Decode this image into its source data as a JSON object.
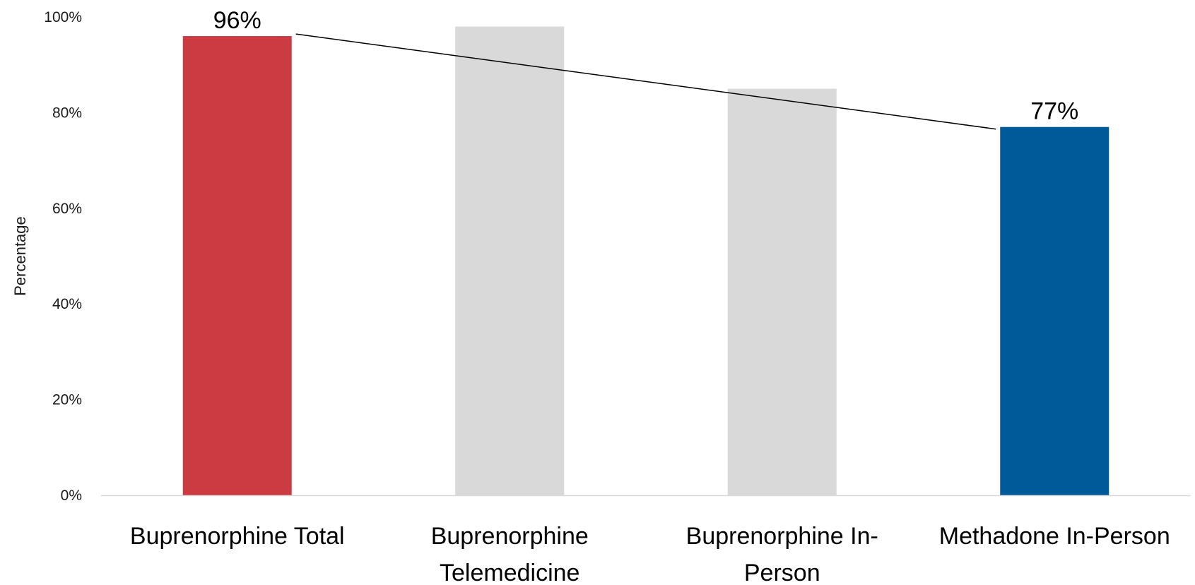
{
  "chart_data": {
    "type": "bar",
    "title": "",
    "xlabel": "",
    "ylabel": "Percentage",
    "ylim": [
      0,
      100
    ],
    "yticks": [
      0,
      20,
      40,
      60,
      80,
      100
    ],
    "ytick_labels": [
      "0%",
      "20%",
      "40%",
      "60%",
      "80%",
      "100%"
    ],
    "grid": false,
    "legend": "none",
    "categories": [
      [
        "Buprenorphine Total"
      ],
      [
        "Buprenorphine",
        "Telemedicine"
      ],
      [
        "Buprenorphine In-",
        "Person"
      ],
      [
        "Methadone In-Person"
      ]
    ],
    "values": [
      96,
      98,
      85,
      77
    ],
    "colors": [
      "#cc3a42",
      "#d9d9d9",
      "#d9d9d9",
      "#005a99"
    ],
    "data_labels": [
      "96%",
      "",
      "",
      "77%"
    ],
    "annotations": [
      {
        "type": "connector-line",
        "from_category": 0,
        "to_category": 3,
        "from_value": 96,
        "to_value": 77
      }
    ]
  }
}
